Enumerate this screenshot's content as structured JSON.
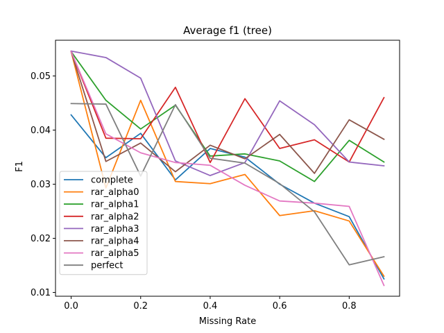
{
  "chart_data": {
    "type": "line",
    "title": "Average f1 (tree)",
    "xlabel": "Missing Rate",
    "ylabel": "F1",
    "xlim": [
      -0.045,
      0.945
    ],
    "ylim": [
      0.0093,
      0.0566
    ],
    "x": [
      0.0,
      0.1,
      0.2,
      0.3,
      0.4,
      0.5,
      0.6,
      0.7,
      0.8,
      0.9
    ],
    "x_ticks": [
      0.0,
      0.2,
      0.4,
      0.6,
      0.8
    ],
    "x_tick_labels": [
      "0.0",
      "0.2",
      "0.4",
      "0.6",
      "0.8"
    ],
    "y_ticks": [
      0.01,
      0.02,
      0.03,
      0.04,
      0.05
    ],
    "y_tick_labels": [
      "0.01",
      "0.02",
      "0.03",
      "0.04",
      "0.05"
    ],
    "grid": false,
    "legend_position": "lower-left",
    "series": [
      {
        "name": "complete",
        "color": "#1f77b4",
        "values": [
          0.0428,
          0.0349,
          0.0394,
          0.0308,
          0.0366,
          0.035,
          0.03,
          0.0265,
          0.024,
          0.0125
        ]
      },
      {
        "name": "rar_alpha0",
        "color": "#ff7f0e",
        "values": [
          0.0545,
          0.0293,
          0.0455,
          0.0305,
          0.0301,
          0.0318,
          0.0242,
          0.0251,
          0.0232,
          0.013
        ]
      },
      {
        "name": "rar_alpha1",
        "color": "#2ca02c",
        "values": [
          0.0545,
          0.0455,
          0.0402,
          0.0446,
          0.0352,
          0.0356,
          0.0343,
          0.0305,
          0.0381,
          0.0341
        ]
      },
      {
        "name": "rar_alpha2",
        "color": "#d62728",
        "values": [
          0.0545,
          0.0385,
          0.0384,
          0.0479,
          0.034,
          0.0458,
          0.0366,
          0.0382,
          0.0341,
          0.046
        ]
      },
      {
        "name": "rar_alpha3",
        "color": "#9467bd",
        "values": [
          0.0546,
          0.0534,
          0.0496,
          0.0343,
          0.0316,
          0.034,
          0.0454,
          0.041,
          0.0341,
          0.0334
        ]
      },
      {
        "name": "rar_alpha4",
        "color": "#8c564b",
        "values": [
          0.0545,
          0.0342,
          0.0376,
          0.0323,
          0.0372,
          0.0347,
          0.0392,
          0.032,
          0.0419,
          0.0383
        ]
      },
      {
        "name": "rar_alpha5",
        "color": "#e377c2",
        "values": [
          0.0545,
          0.0393,
          0.0358,
          0.034,
          0.0335,
          0.0298,
          0.0269,
          0.0265,
          0.0259,
          0.0113
        ]
      },
      {
        "name": "perfect",
        "color": "#7f7f7f",
        "values": [
          0.0449,
          0.0448,
          0.0315,
          0.0447,
          0.0348,
          0.0339,
          0.0301,
          0.0249,
          0.0151,
          0.0166
        ]
      }
    ]
  }
}
